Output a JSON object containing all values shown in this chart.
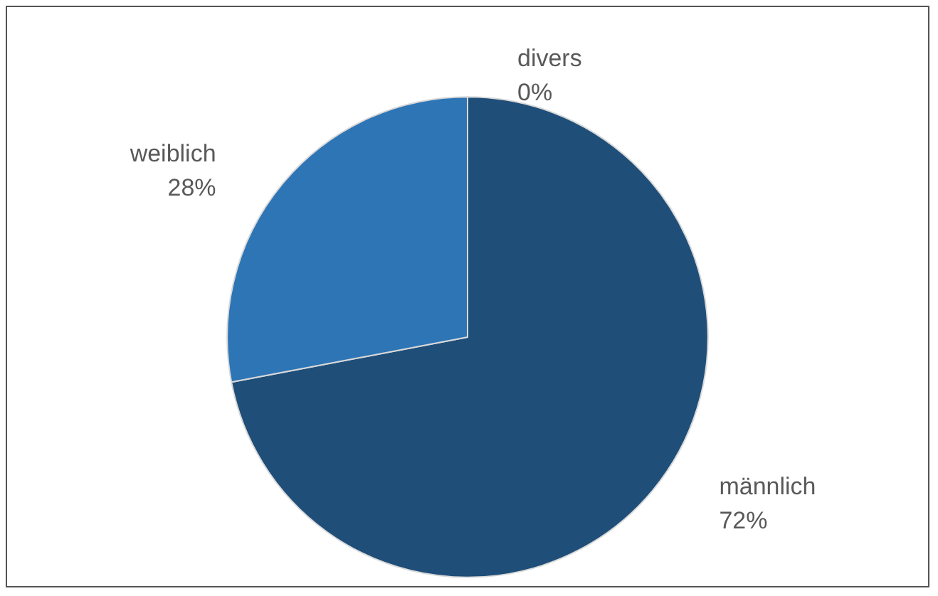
{
  "chart_data": {
    "type": "pie",
    "categories": [
      "männlich",
      "weiblich",
      "divers"
    ],
    "values": [
      72,
      28,
      0
    ],
    "value_labels": [
      "72%",
      "28%",
      "0%"
    ],
    "colors": [
      "#1f4e79",
      "#2e75b6",
      "#9dc3e6"
    ],
    "legend": false
  }
}
